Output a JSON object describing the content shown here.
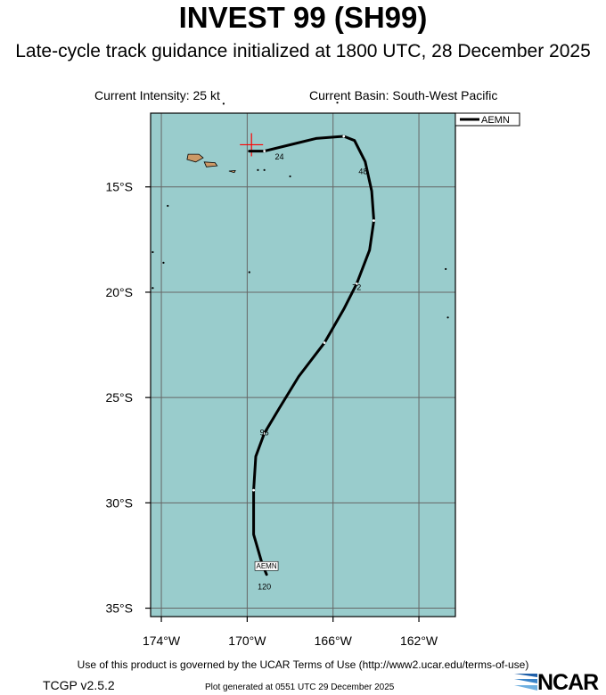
{
  "header": {
    "title": "INVEST 99 (SH99)",
    "subtitle": "Late-cycle track guidance initialized at 1800 UTC, 28 December 2025",
    "intensity": "Current Intensity: 25 kt",
    "basin": "Current Basin: South-West Pacific"
  },
  "map": {
    "extent": {
      "lon_min": -174.5,
      "lon_max": -160.3,
      "lat_min": -35.4,
      "lat_max": -11.5
    },
    "ocean_color": "#99cccc",
    "land_color": "#cc9966",
    "gridlines_lon": [
      -174,
      -170,
      -166,
      -162
    ],
    "gridlines_lat": [
      -15,
      -20,
      -25,
      -30,
      -35
    ],
    "lon_tick_labels": [
      "174°W",
      "170°W",
      "166°W",
      "162°W"
    ],
    "lat_tick_labels": [
      "15°S",
      "20°S",
      "25°S",
      "30°S",
      "35°S"
    ],
    "current_position": {
      "lon": -169.8,
      "lat": -13.0,
      "marker_color": "#ff0000"
    },
    "legend": {
      "label": "AEMN",
      "position": "top-right"
    },
    "track": {
      "name": "AEMN",
      "color": "#000000",
      "points": [
        {
          "lon": -169.9,
          "lat": -13.3
        },
        {
          "lon": -169.2,
          "lat": -13.3
        },
        {
          "lon": -168.0,
          "lat": -13.0
        },
        {
          "lon": -166.8,
          "lat": -12.7
        },
        {
          "lon": -165.5,
          "lat": -12.6
        },
        {
          "lon": -165.0,
          "lat": -12.8
        },
        {
          "lon": -164.5,
          "lat": -13.8
        },
        {
          "lon": -164.2,
          "lat": -15.2
        },
        {
          "lon": -164.1,
          "lat": -16.6
        },
        {
          "lon": -164.3,
          "lat": -18.0
        },
        {
          "lon": -164.9,
          "lat": -19.6
        },
        {
          "lon": -165.5,
          "lat": -20.8
        },
        {
          "lon": -166.4,
          "lat": -22.4
        },
        {
          "lon": -167.6,
          "lat": -24.0
        },
        {
          "lon": -168.5,
          "lat": -25.5
        },
        {
          "lon": -169.2,
          "lat": -26.7
        },
        {
          "lon": -169.6,
          "lat": -27.8
        },
        {
          "lon": -169.7,
          "lat": -29.4
        },
        {
          "lon": -169.7,
          "lat": -31.5
        },
        {
          "lon": -169.3,
          "lat": -32.9
        },
        {
          "lon": -169.1,
          "lat": -33.4
        }
      ],
      "markers": [
        {
          "lon": -169.2,
          "lat": -13.3
        },
        {
          "lon": -165.5,
          "lat": -12.6
        },
        {
          "lon": -164.1,
          "lat": -16.6
        },
        {
          "lon": -164.9,
          "lat": -19.6
        },
        {
          "lon": -166.4,
          "lat": -22.4
        },
        {
          "lon": -169.2,
          "lat": -26.7
        },
        {
          "lon": -169.7,
          "lat": -29.4
        }
      ],
      "hour_labels": [
        {
          "text": "24",
          "lon": -168.5,
          "lat": -13.6
        },
        {
          "text": "48",
          "lon": -164.6,
          "lat": -14.3
        },
        {
          "text": "72",
          "lon": -164.9,
          "lat": -19.8
        },
        {
          "text": "96",
          "lon": -169.2,
          "lat": -26.7
        },
        {
          "text": "120",
          "lon": -169.2,
          "lat": -34.0
        }
      ],
      "end_label": {
        "text": "AEMN",
        "lon": -169.1,
        "lat": -33.0
      }
    },
    "islands": [
      {
        "name": "savaii",
        "points": [
          [
            -172.75,
            -13.45
          ],
          [
            -172.25,
            -13.45
          ],
          [
            -172.05,
            -13.62
          ],
          [
            -172.4,
            -13.82
          ],
          [
            -172.8,
            -13.7
          ]
        ]
      },
      {
        "name": "upolu",
        "points": [
          [
            -172.0,
            -13.82
          ],
          [
            -171.5,
            -13.85
          ],
          [
            -171.4,
            -14.0
          ],
          [
            -171.9,
            -14.05
          ]
        ]
      },
      {
        "name": "tutuila",
        "points": [
          [
            -170.85,
            -14.25
          ],
          [
            -170.55,
            -14.23
          ],
          [
            -170.6,
            -14.32
          ]
        ]
      }
    ],
    "dots": [
      {
        "lon": -171.1,
        "lat": -11.05
      },
      {
        "lon": -165.8,
        "lat": -11.0
      },
      {
        "lon": -169.2,
        "lat": -14.2
      },
      {
        "lon": -169.5,
        "lat": -14.2
      },
      {
        "lon": -168.0,
        "lat": -14.5
      },
      {
        "lon": -173.7,
        "lat": -15.9
      },
      {
        "lon": -173.9,
        "lat": -18.6
      },
      {
        "lon": -174.4,
        "lat": -19.8
      },
      {
        "lon": -174.4,
        "lat": -18.1
      },
      {
        "lon": -169.9,
        "lat": -19.05
      },
      {
        "lon": -160.75,
        "lat": -18.9
      },
      {
        "lon": -160.65,
        "lat": -21.2
      }
    ]
  },
  "footer": {
    "terms": "Use of this product is governed by the UCAR Terms of Use (http://www2.ucar.edu/terms-of-use)",
    "version": "TCGP v2.5.2",
    "generated": "Plot generated at 0551 UTC   29 December 2025",
    "logo": "NCAR"
  }
}
